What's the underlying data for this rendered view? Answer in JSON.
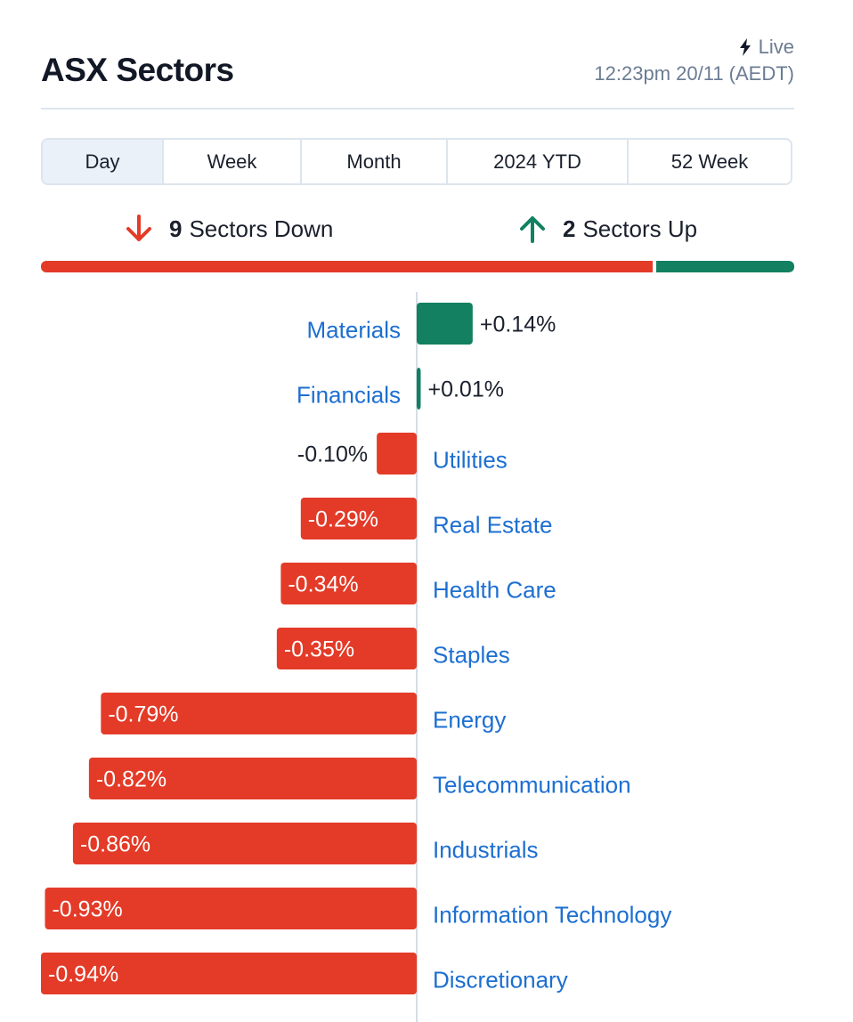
{
  "header": {
    "title": "ASX Sectors",
    "live_label": "Live",
    "timestamp": "12:23pm 20/11 (AEDT)"
  },
  "tabs": [
    {
      "label": "Day",
      "active": true
    },
    {
      "label": "Week",
      "active": false
    },
    {
      "label": "Month",
      "active": false
    },
    {
      "label": "2024 YTD",
      "active": false
    },
    {
      "label": "52 Week",
      "active": false
    }
  ],
  "summary": {
    "down_count": "9",
    "down_label": "Sectors Down",
    "up_count": "2",
    "up_label": "Sectors Up"
  },
  "colors": {
    "down": "#e33b28",
    "up": "#128061",
    "link": "#1d6fd1",
    "text": "#1a202c",
    "axis": "#d5dde6"
  },
  "chart_data": {
    "type": "bar",
    "orientation": "horizontal",
    "categories": [
      "Materials",
      "Financials",
      "Utilities",
      "Real Estate",
      "Health Care",
      "Staples",
      "Energy",
      "Telecommunication",
      "Industrials",
      "Information Technology",
      "Discretionary"
    ],
    "values": [
      0.14,
      0.01,
      -0.1,
      -0.29,
      -0.34,
      -0.35,
      -0.79,
      -0.82,
      -0.86,
      -0.93,
      -0.94
    ],
    "labels": [
      "+0.14%",
      "+0.01%",
      "-0.10%",
      "-0.29%",
      "-0.34%",
      "-0.35%",
      "-0.79%",
      "-0.82%",
      "-0.86%",
      "-0.93%",
      "-0.94%"
    ],
    "unit": "%",
    "xlim": [
      -0.94,
      0.94
    ]
  }
}
